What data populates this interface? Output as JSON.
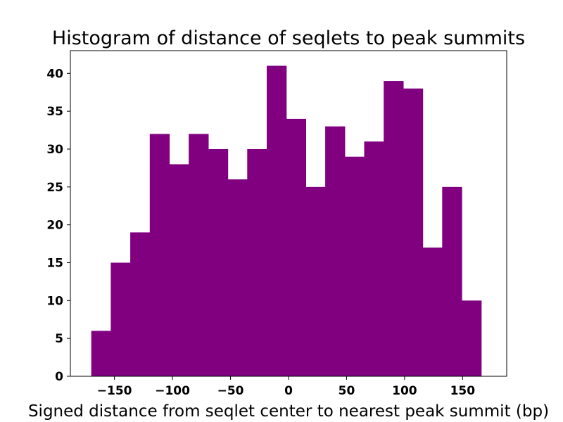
{
  "chart_data": {
    "type": "bar",
    "title": "Histogram of distance of seqlets to peak summits",
    "xlabel": "Signed distance from seqlet center to nearest peak summit (bp)",
    "ylabel": "",
    "bar_color": "#800080",
    "bins": [
      {
        "x0": -170.0,
        "x1": -153.2,
        "count": 6
      },
      {
        "x0": -153.2,
        "x1": -136.4,
        "count": 15
      },
      {
        "x0": -136.4,
        "x1": -119.6,
        "count": 19
      },
      {
        "x0": -119.6,
        "x1": -102.8,
        "count": 32
      },
      {
        "x0": -102.8,
        "x1": -86.0,
        "count": 28
      },
      {
        "x0": -86.0,
        "x1": -69.2,
        "count": 32
      },
      {
        "x0": -69.2,
        "x1": -52.4,
        "count": 30
      },
      {
        "x0": -52.4,
        "x1": -35.6,
        "count": 26
      },
      {
        "x0": -35.6,
        "x1": -18.8,
        "count": 30
      },
      {
        "x0": -18.8,
        "x1": -2.0,
        "count": 41
      },
      {
        "x0": -2.0,
        "x1": 14.8,
        "count": 34
      },
      {
        "x0": 14.8,
        "x1": 31.6,
        "count": 25
      },
      {
        "x0": 31.6,
        "x1": 48.4,
        "count": 33
      },
      {
        "x0": 48.4,
        "x1": 65.2,
        "count": 29
      },
      {
        "x0": 65.2,
        "x1": 82.0,
        "count": 31
      },
      {
        "x0": 82.0,
        "x1": 98.8,
        "count": 39
      },
      {
        "x0": 98.8,
        "x1": 115.6,
        "count": 38
      },
      {
        "x0": 115.6,
        "x1": 132.4,
        "count": 17
      },
      {
        "x0": 132.4,
        "x1": 149.2,
        "count": 25
      },
      {
        "x0": 149.2,
        "x1": 166.0,
        "count": 10
      }
    ],
    "xlim": [
      -188,
      188
    ],
    "ylim": [
      0,
      43
    ],
    "xticks": [
      -150,
      -100,
      -50,
      0,
      50,
      100,
      150
    ],
    "xtick_labels": [
      "−150",
      "−100",
      "−50",
      "0",
      "50",
      "100",
      "150"
    ],
    "yticks": [
      0,
      5,
      10,
      15,
      20,
      25,
      30,
      35,
      40
    ],
    "ytick_labels": [
      "0",
      "5",
      "10",
      "15",
      "20",
      "25",
      "30",
      "35",
      "40"
    ],
    "grid": false,
    "legend": false
  }
}
